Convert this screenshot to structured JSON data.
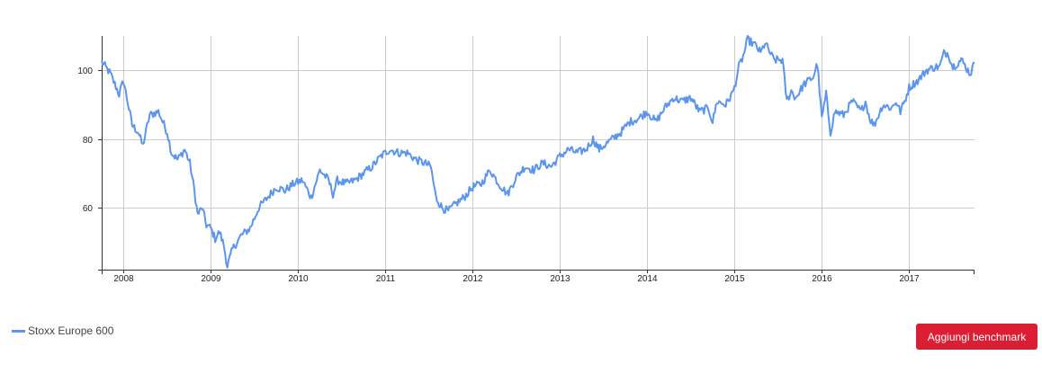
{
  "colors": {
    "line": "#5b95ee",
    "grid": "#cccccc",
    "axis": "#333333",
    "button_bg": "#dc1e35"
  },
  "chart_data": {
    "type": "line",
    "title": "",
    "xlabel": "",
    "ylabel": "",
    "grid": true,
    "legend_position": "bottom-left",
    "xlim": [
      2007.75,
      2017.75
    ],
    "ylim": [
      42,
      110
    ],
    "x_ticks": [
      "2008",
      "2009",
      "2010",
      "2011",
      "2012",
      "2013",
      "2014",
      "2015",
      "2016",
      "2017"
    ],
    "y_ticks": [
      "60",
      "80",
      "100"
    ],
    "series": [
      {
        "name": "Stoxx Europe 600",
        "x": [
          2007.75,
          2007.85,
          2007.95,
          2008.0,
          2008.1,
          2008.17,
          2008.22,
          2008.3,
          2008.4,
          2008.5,
          2008.55,
          2008.62,
          2008.7,
          2008.76,
          2008.8,
          2008.85,
          2008.9,
          2008.95,
          2009.0,
          2009.05,
          2009.1,
          2009.15,
          2009.19,
          2009.25,
          2009.35,
          2009.45,
          2009.55,
          2009.65,
          2009.75,
          2009.85,
          2009.95,
          2010.05,
          2010.15,
          2010.25,
          2010.35,
          2010.4,
          2010.45,
          2010.55,
          2010.65,
          2010.75,
          2010.85,
          2010.95,
          2011.05,
          2011.15,
          2011.25,
          2011.35,
          2011.45,
          2011.52,
          2011.58,
          2011.65,
          2011.72,
          2011.8,
          2011.9,
          2012.0,
          2012.1,
          2012.2,
          2012.3,
          2012.4,
          2012.5,
          2012.6,
          2012.7,
          2012.8,
          2012.9,
          2013.0,
          2013.1,
          2013.2,
          2013.3,
          2013.38,
          2013.45,
          2013.5,
          2013.6,
          2013.7,
          2013.8,
          2013.9,
          2014.0,
          2014.1,
          2014.2,
          2014.3,
          2014.4,
          2014.5,
          2014.6,
          2014.7,
          2014.75,
          2014.8,
          2014.9,
          2014.97,
          2015.0,
          2015.05,
          2015.1,
          2015.15,
          2015.25,
          2015.3,
          2015.35,
          2015.45,
          2015.55,
          2015.6,
          2015.65,
          2015.7,
          2015.8,
          2015.9,
          2015.95,
          2016.0,
          2016.05,
          2016.1,
          2016.15,
          2016.25,
          2016.35,
          2016.45,
          2016.5,
          2016.55,
          2016.6,
          2016.7,
          2016.8,
          2016.85,
          2016.9,
          2016.95,
          2017.0,
          2017.1,
          2017.2,
          2017.3,
          2017.35,
          2017.4,
          2017.45,
          2017.5,
          2017.6,
          2017.65,
          2017.7,
          2017.75
        ],
        "values": [
          102.5,
          99,
          93,
          97,
          84,
          82,
          78,
          87,
          88,
          82,
          76,
          74,
          77,
          73,
          67,
          58,
          60,
          55,
          54,
          51,
          53,
          49,
          43,
          48,
          52,
          54,
          60,
          63,
          66,
          65,
          67,
          68,
          63,
          71,
          68,
          64,
          68,
          67,
          68,
          70,
          72,
          75,
          77,
          76,
          76,
          74,
          73,
          72,
          63,
          60,
          59,
          61,
          63,
          66,
          67,
          71,
          67,
          64,
          69,
          72,
          71,
          73,
          72,
          75,
          77,
          76,
          77,
          80,
          77,
          78,
          80,
          82,
          85,
          86,
          88,
          85,
          89,
          92,
          91,
          92,
          88,
          89,
          85,
          91,
          90,
          93,
          95,
          101,
          104,
          109,
          107,
          105,
          108,
          103,
          103,
          91,
          94,
          92,
          96,
          98,
          102,
          86,
          93,
          82,
          88,
          87,
          91,
          88,
          91,
          86,
          84,
          90,
          89,
          91,
          88,
          91,
          95,
          97,
          100,
          101,
          101,
          105,
          105,
          101,
          103,
          101,
          99,
          102
        ]
      }
    ]
  },
  "legend": {
    "label": "Stoxx Europe 600"
  },
  "button": {
    "label": "Aggiungi benchmark"
  }
}
